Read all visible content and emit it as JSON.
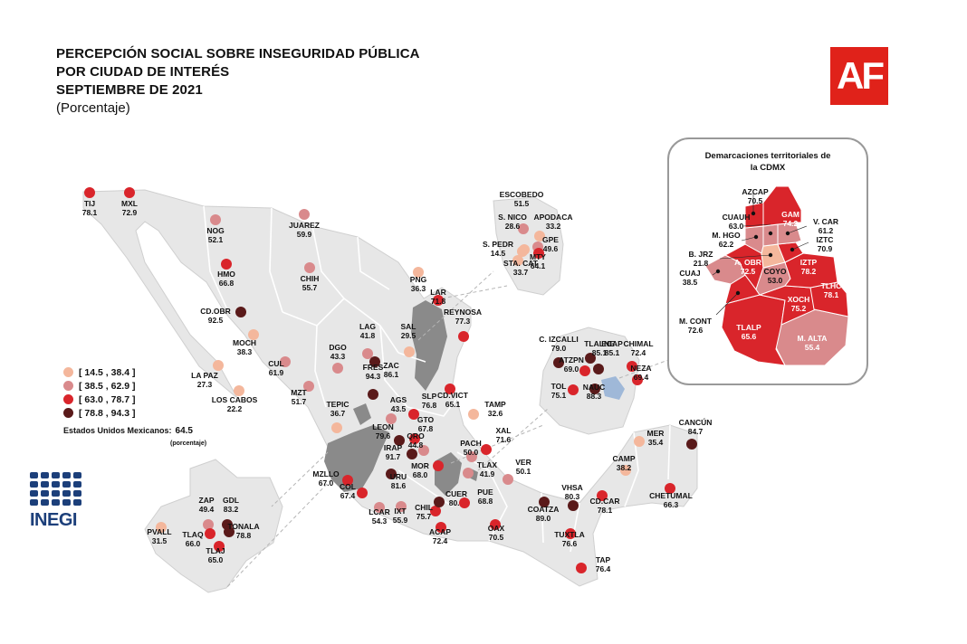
{
  "title": {
    "line1": "PERCEPCIÓN SOCIAL SOBRE INSEGURIDAD PÚBLICA",
    "line2": "POR CIUDAD DE INTERÉS",
    "line3": "SEPTIEMBRE DE 2021",
    "line4": "(Porcentaje)"
  },
  "logo_text": "AF",
  "brand_color": "#e0221a",
  "legend": [
    {
      "label": "[ 14.5 , 38.4 ]",
      "color": "#f4b79c"
    },
    {
      "label": "[ 38.5 , 62.9 ]",
      "color": "#d98a8c"
    },
    {
      "label": "[ 63.0 , 78.7 ]",
      "color": "#d9252b"
    },
    {
      "label": "[ 78.8 , 94.3 ]",
      "color": "#5a1a1a"
    }
  ],
  "national": {
    "label": "Estados Unidos Mexicanos:",
    "value": "64.5",
    "unit": "(porcentaje)"
  },
  "inegi_text": "INEGI",
  "cdmx": {
    "title_line1": "Demarcaciones territoriales de",
    "title_line2": "la CDMX",
    "labels": [
      {
        "name": "AZCAP",
        "value": "70.5"
      },
      {
        "name": "GAM",
        "value": "74.2"
      },
      {
        "name": "CUAUH",
        "value": "63.0"
      },
      {
        "name": "V. CAR",
        "value": "61.2"
      },
      {
        "name": "M. HGO",
        "value": "62.2"
      },
      {
        "name": "IZTC",
        "value": "70.9"
      },
      {
        "name": "B. JRZ",
        "value": "21.8"
      },
      {
        "name": "A. OBR",
        "value": "72.5"
      },
      {
        "name": "IZTP",
        "value": "78.2"
      },
      {
        "name": "CUAJ",
        "value": "38.5"
      },
      {
        "name": "COYO",
        "value": "53.0"
      },
      {
        "name": "TLHC",
        "value": "78.1"
      },
      {
        "name": "XOCH",
        "value": "75.2"
      },
      {
        "name": "M. CONT",
        "value": "72.6"
      },
      {
        "name": "TLALP",
        "value": "65.6"
      },
      {
        "name": "M. ALTA",
        "value": "55.4"
      }
    ]
  },
  "cities": [
    {
      "name": "TIJ",
      "value": "78.1",
      "cls": 2
    },
    {
      "name": "MXL",
      "value": "72.9",
      "cls": 2
    },
    {
      "name": "NOG",
      "value": "52.1",
      "cls": 1
    },
    {
      "name": "HMO",
      "value": "66.8",
      "cls": 2
    },
    {
      "name": "JUAREZ",
      "value": "59.9",
      "cls": 1
    },
    {
      "name": "CHIH",
      "value": "55.7",
      "cls": 1
    },
    {
      "name": "CD.OBR",
      "value": "92.5",
      "cls": 3
    },
    {
      "name": "MOCH",
      "value": "38.3",
      "cls": 0
    },
    {
      "name": "LA PAZ",
      "value": "27.3",
      "cls": 0
    },
    {
      "name": "LOS CABOS",
      "value": "22.2",
      "cls": 0
    },
    {
      "name": "CUL",
      "value": "61.9",
      "cls": 1
    },
    {
      "name": "MZT",
      "value": "51.7",
      "cls": 1
    },
    {
      "name": "DGO",
      "value": "43.3",
      "cls": 1
    },
    {
      "name": "LAG",
      "value": "41.8",
      "cls": 1
    },
    {
      "name": "PNG",
      "value": "36.3",
      "cls": 0
    },
    {
      "name": "SAL",
      "value": "29.5",
      "cls": 0
    },
    {
      "name": "LAR",
      "value": "71.8",
      "cls": 2
    },
    {
      "name": "REYNOSA",
      "value": "77.3",
      "cls": 2
    },
    {
      "name": "ESCOBEDO",
      "value": "51.5",
      "cls": 1
    },
    {
      "name": "S. NICO",
      "value": "28.6",
      "cls": 0
    },
    {
      "name": "APODACA",
      "value": "33.2",
      "cls": 0
    },
    {
      "name": "S. PEDR",
      "value": "14.5",
      "cls": 0
    },
    {
      "name": "GPE",
      "value": "49.6",
      "cls": 1
    },
    {
      "name": "STA. CAT",
      "value": "33.7",
      "cls": 0
    },
    {
      "name": "MTY",
      "value": "64.1",
      "cls": 2
    },
    {
      "name": "FRES",
      "value": "94.3",
      "cls": 3
    },
    {
      "name": "ZAC",
      "value": "86.1",
      "cls": 3
    },
    {
      "name": "AGS",
      "value": "43.5",
      "cls": 1
    },
    {
      "name": "SLP",
      "value": "76.8",
      "cls": 2
    },
    {
      "name": "CD.VICT",
      "value": "65.1",
      "cls": 2
    },
    {
      "name": "TAMP",
      "value": "32.6",
      "cls": 0
    },
    {
      "name": "TEPIC",
      "value": "36.7",
      "cls": 0
    },
    {
      "name": "LEON",
      "value": "79.6",
      "cls": 3
    },
    {
      "name": "GTO",
      "value": "67.8",
      "cls": 2
    },
    {
      "name": "IRAP",
      "value": "91.7",
      "cls": 3
    },
    {
      "name": "QRO",
      "value": "44.8",
      "cls": 1
    },
    {
      "name": "PACH",
      "value": "50.0",
      "cls": 1
    },
    {
      "name": "XAL",
      "value": "71.6",
      "cls": 2
    },
    {
      "name": "MOR",
      "value": "68.0",
      "cls": 2
    },
    {
      "name": "URU",
      "value": "81.6",
      "cls": 3
    },
    {
      "name": "TLAX",
      "value": "41.9",
      "cls": 1
    },
    {
      "name": "VER",
      "value": "50.1",
      "cls": 1
    },
    {
      "name": "MZLLO",
      "value": "67.0",
      "cls": 2
    },
    {
      "name": "COL",
      "value": "67.4",
      "cls": 2
    },
    {
      "name": "LCAR",
      "value": "54.3",
      "cls": 1
    },
    {
      "name": "IXT",
      "value": "55.9",
      "cls": 1
    },
    {
      "name": "CHIL",
      "value": "75.7",
      "cls": 2
    },
    {
      "name": "CUER",
      "value": "80.4",
      "cls": 3
    },
    {
      "name": "PUE",
      "value": "68.8",
      "cls": 2
    },
    {
      "name": "ACAP",
      "value": "72.4",
      "cls": 2
    },
    {
      "name": "OAX",
      "value": "70.5",
      "cls": 2
    },
    {
      "name": "COATZA",
      "value": "89.0",
      "cls": 3
    },
    {
      "name": "VHSA",
      "value": "80.3",
      "cls": 3
    },
    {
      "name": "CD.CAR",
      "value": "78.1",
      "cls": 2
    },
    {
      "name": "TUXTLA",
      "value": "76.6",
      "cls": 2
    },
    {
      "name": "TAP",
      "value": "76.4",
      "cls": 2
    },
    {
      "name": "CAMP",
      "value": "38.2",
      "cls": 0
    },
    {
      "name": "MER",
      "value": "35.4",
      "cls": 0
    },
    {
      "name": "CANCÚN",
      "value": "84.7",
      "cls": 3
    },
    {
      "name": "CHETUMAL",
      "value": "66.3",
      "cls": 2
    },
    {
      "name": "TLALNE",
      "value": "85.1",
      "cls": 3
    },
    {
      "name": "C. IZCALLI",
      "value": "79.0",
      "cls": 3
    },
    {
      "name": "CHIMAL",
      "value": "72.4",
      "cls": 2
    },
    {
      "name": "ATZPN",
      "value": "69.0",
      "cls": 2
    },
    {
      "name": "ECAP",
      "value": "85.1",
      "cls": 3
    },
    {
      "name": "NEZA",
      "value": "69.4",
      "cls": 2
    },
    {
      "name": "TOL",
      "value": "75.1",
      "cls": 2
    },
    {
      "name": "NAUC",
      "value": "88.3",
      "cls": 3
    },
    {
      "name": "PVALL",
      "value": "31.5",
      "cls": 0
    },
    {
      "name": "ZAP",
      "value": "49.4",
      "cls": 1
    },
    {
      "name": "GDL",
      "value": "83.2",
      "cls": 3
    },
    {
      "name": "TONALA",
      "value": "78.8",
      "cls": 3
    },
    {
      "name": "TLAQ",
      "value": "66.0",
      "cls": 2
    },
    {
      "name": "TLAJ",
      "value": "65.0",
      "cls": 2
    }
  ]
}
